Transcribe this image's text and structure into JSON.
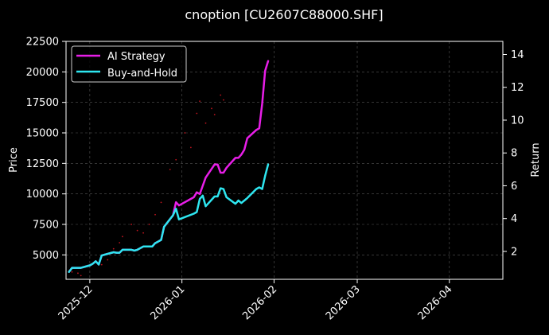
{
  "chart_data": {
    "type": "line",
    "title": "cnoption [CU2607C88000.SHF]",
    "xlabel": "",
    "ylabel": "Price",
    "y2label": "Return",
    "x_type": "date",
    "xlim": [
      "2025-11-23",
      "2026-04-19"
    ],
    "xticks": [
      "2025-12",
      "2026-01",
      "2026-02",
      "2026-03",
      "2026-04"
    ],
    "ylim": [
      3000,
      22500
    ],
    "yticks": [
      5000,
      7500,
      10000,
      12500,
      15000,
      17500,
      20000,
      22500
    ],
    "y2lim": [
      0.3,
      14.8
    ],
    "y2ticks": [
      2,
      4,
      6,
      8,
      10,
      12,
      14
    ],
    "grid": true,
    "legend_position": "top-left",
    "colors": {
      "background": "#000000",
      "ai_strategy": "#e81ee8",
      "buy_and_hold": "#2ee6f0",
      "price_scatter": "#c0141e",
      "grid": "#555555"
    },
    "series": [
      {
        "name": "AI Strategy",
        "axis": "right",
        "color": "#e81ee8",
        "points": [
          [
            "2025-11-24",
            0.75
          ],
          [
            "2025-11-25",
            1.0
          ],
          [
            "2025-11-28",
            1.0
          ],
          [
            "2025-12-01",
            1.15
          ],
          [
            "2025-12-02",
            1.25
          ],
          [
            "2025-12-03",
            1.4
          ],
          [
            "2025-12-04",
            1.2
          ],
          [
            "2025-12-05",
            1.75
          ],
          [
            "2025-12-08",
            1.9
          ],
          [
            "2025-12-09",
            1.95
          ],
          [
            "2025-12-10",
            1.92
          ],
          [
            "2025-12-11",
            1.92
          ],
          [
            "2025-12-12",
            2.1
          ],
          [
            "2025-12-15",
            2.1
          ],
          [
            "2025-12-16",
            2.05
          ],
          [
            "2025-12-17",
            2.1
          ],
          [
            "2025-12-18",
            2.2
          ],
          [
            "2025-12-19",
            2.3
          ],
          [
            "2025-12-22",
            2.3
          ],
          [
            "2025-12-23",
            2.5
          ],
          [
            "2025-12-24",
            2.6
          ],
          [
            "2025-12-25",
            2.7
          ],
          [
            "2025-12-26",
            3.5
          ],
          [
            "2025-12-29",
            4.2
          ],
          [
            "2025-12-30",
            5.0
          ],
          [
            "2025-12-31",
            4.8
          ],
          [
            "2026-01-05",
            5.3
          ],
          [
            "2026-01-06",
            5.6
          ],
          [
            "2026-01-07",
            5.5
          ],
          [
            "2026-01-08",
            6.0
          ],
          [
            "2026-01-09",
            6.5
          ],
          [
            "2026-01-12",
            7.3
          ],
          [
            "2026-01-13",
            7.3
          ],
          [
            "2026-01-14",
            6.8
          ],
          [
            "2026-01-15",
            6.8
          ],
          [
            "2026-01-16",
            7.1
          ],
          [
            "2026-01-19",
            7.7
          ],
          [
            "2026-01-20",
            7.7
          ],
          [
            "2026-01-21",
            7.9
          ],
          [
            "2026-01-22",
            8.2
          ],
          [
            "2026-01-23",
            8.9
          ],
          [
            "2026-01-26",
            9.4
          ],
          [
            "2026-01-27",
            9.5
          ],
          [
            "2026-01-28",
            11.0
          ],
          [
            "2026-01-29",
            13.0
          ],
          [
            "2026-01-30",
            13.6
          ]
        ]
      },
      {
        "name": "Buy-and-Hold",
        "axis": "right",
        "color": "#2ee6f0",
        "points": [
          [
            "2025-11-24",
            0.75
          ],
          [
            "2025-11-25",
            1.0
          ],
          [
            "2025-11-28",
            1.0
          ],
          [
            "2025-12-01",
            1.15
          ],
          [
            "2025-12-02",
            1.25
          ],
          [
            "2025-12-03",
            1.4
          ],
          [
            "2025-12-04",
            1.2
          ],
          [
            "2025-12-05",
            1.75
          ],
          [
            "2025-12-08",
            1.9
          ],
          [
            "2025-12-09",
            1.95
          ],
          [
            "2025-12-10",
            1.92
          ],
          [
            "2025-12-11",
            1.92
          ],
          [
            "2025-12-12",
            2.1
          ],
          [
            "2025-12-15",
            2.1
          ],
          [
            "2025-12-16",
            2.05
          ],
          [
            "2025-12-17",
            2.1
          ],
          [
            "2025-12-18",
            2.2
          ],
          [
            "2025-12-19",
            2.3
          ],
          [
            "2025-12-22",
            2.3
          ],
          [
            "2025-12-23",
            2.5
          ],
          [
            "2025-12-24",
            2.6
          ],
          [
            "2025-12-25",
            2.7
          ],
          [
            "2025-12-26",
            3.5
          ],
          [
            "2025-12-29",
            4.2
          ],
          [
            "2025-12-30",
            4.6
          ],
          [
            "2025-12-31",
            3.95
          ],
          [
            "2026-01-05",
            4.3
          ],
          [
            "2026-01-06",
            4.4
          ],
          [
            "2026-01-07",
            5.2
          ],
          [
            "2026-01-08",
            5.4
          ],
          [
            "2026-01-09",
            4.75
          ],
          [
            "2026-01-12",
            5.35
          ],
          [
            "2026-01-13",
            5.35
          ],
          [
            "2026-01-14",
            5.85
          ],
          [
            "2026-01-15",
            5.8
          ],
          [
            "2026-01-16",
            5.3
          ],
          [
            "2026-01-19",
            4.9
          ],
          [
            "2026-01-20",
            5.1
          ],
          [
            "2026-01-21",
            4.95
          ],
          [
            "2026-01-22",
            5.1
          ],
          [
            "2026-01-23",
            5.25
          ],
          [
            "2026-01-26",
            5.8
          ],
          [
            "2026-01-27",
            5.9
          ],
          [
            "2026-01-28",
            5.8
          ],
          [
            "2026-01-29",
            6.6
          ],
          [
            "2026-01-30",
            7.3
          ]
        ]
      },
      {
        "name": "Price",
        "axis": "left",
        "style": "scatter",
        "color": "#c0141e",
        "points": [
          [
            "2025-11-24",
            3700
          ],
          [
            "2025-11-25",
            3600
          ],
          [
            "2025-11-27",
            3500
          ],
          [
            "2025-11-28",
            3300
          ],
          [
            "2025-12-03",
            4400
          ],
          [
            "2025-12-05",
            4200
          ],
          [
            "2025-12-07",
            4600
          ],
          [
            "2025-12-09",
            5500
          ],
          [
            "2025-12-11",
            6000
          ],
          [
            "2025-12-12",
            6500
          ],
          [
            "2025-12-15",
            7500
          ],
          [
            "2025-12-17",
            7000
          ],
          [
            "2025-12-19",
            6800
          ],
          [
            "2025-12-21",
            7500
          ],
          [
            "2025-12-23",
            8300
          ],
          [
            "2025-12-25",
            9300
          ],
          [
            "2025-12-28",
            12000
          ],
          [
            "2025-12-30",
            12800
          ],
          [
            "2026-01-02",
            15000
          ],
          [
            "2026-01-04",
            13800
          ],
          [
            "2026-01-06",
            16600
          ],
          [
            "2026-01-07",
            17600
          ],
          [
            "2026-01-09",
            15800
          ],
          [
            "2026-01-11",
            17000
          ],
          [
            "2026-01-12",
            16500
          ],
          [
            "2026-01-14",
            18100
          ],
          [
            "2026-01-15",
            17700
          ]
        ]
      }
    ]
  }
}
